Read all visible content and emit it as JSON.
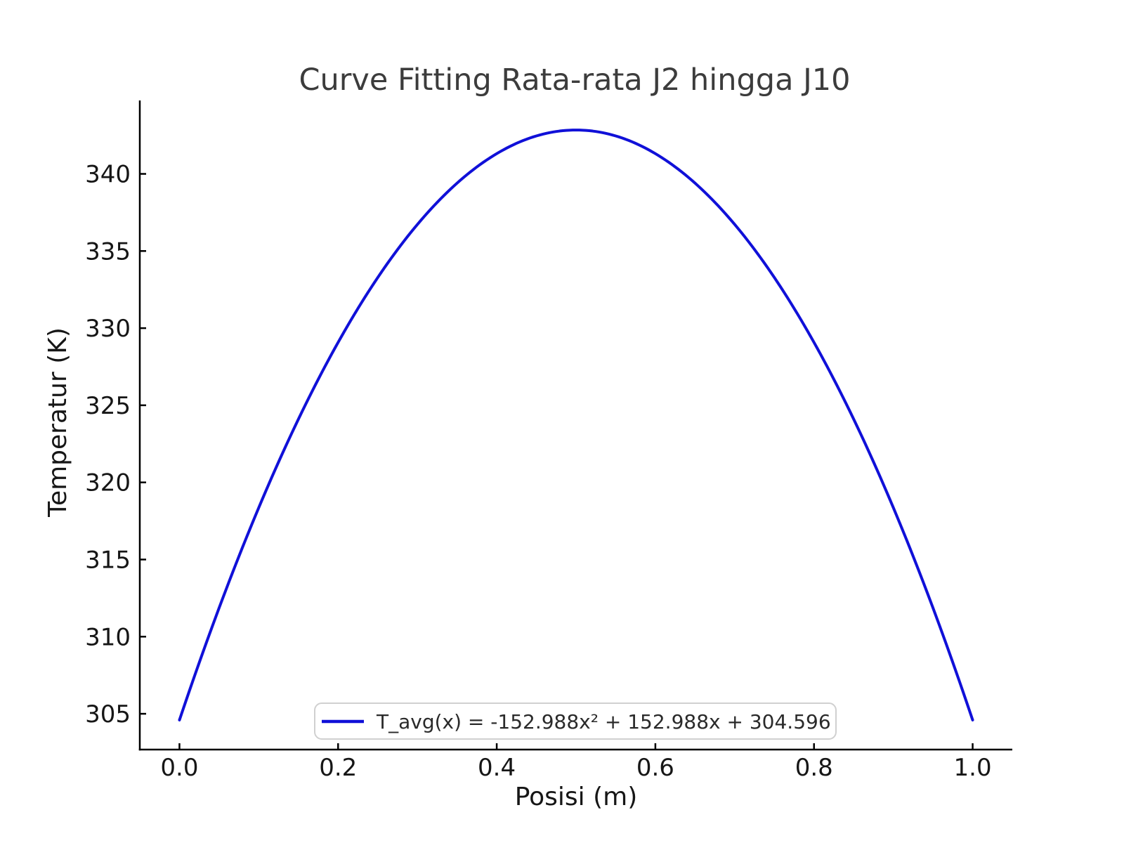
{
  "figure": {
    "background": "#ffffff"
  },
  "colors": {
    "curve": "#1010d8",
    "spine": "#000000",
    "title_text": "#3c3c3c",
    "tick_text": "#161616",
    "legend_border": "#d0d0d0",
    "legend_fill": "#ffffff"
  },
  "chart_data": {
    "type": "line",
    "title": "Curve Fitting Rata-rata J2 hingga J10",
    "xlabel": "Posisi (m)",
    "ylabel": "Temperatur (K)",
    "xlim": [
      -0.05,
      1.05
    ],
    "ylim": [
      302.68,
      344.76
    ],
    "grid": false,
    "x_ticks": {
      "values": [
        0.0,
        0.2,
        0.4,
        0.6,
        0.8,
        1.0
      ],
      "labels": [
        "0.0",
        "0.2",
        "0.4",
        "0.6",
        "0.8",
        "1.0"
      ]
    },
    "y_ticks": {
      "values": [
        305,
        310,
        315,
        320,
        325,
        330,
        335,
        340
      ],
      "labels": [
        "305",
        "310",
        "315",
        "320",
        "325",
        "330",
        "335",
        "340"
      ]
    },
    "legend": {
      "position": "lower center",
      "entries": [
        {
          "label": "T_avg(x) = -152.988x² + 152.988x + 304.596",
          "color": "#1010d8"
        }
      ]
    },
    "series": [
      {
        "name": "T_avg(x) = -152.988x² + 152.988x + 304.596",
        "color": "#1010d8",
        "line_width": 4,
        "fit": {
          "type": "quadratic",
          "a": -152.988,
          "b": 152.988,
          "c": 304.596,
          "x_range": [
            0,
            1
          ]
        },
        "x": [
          0.0,
          0.05,
          0.1,
          0.15,
          0.2,
          0.25,
          0.3,
          0.35,
          0.4,
          0.45,
          0.5,
          0.55,
          0.6,
          0.65,
          0.7,
          0.75,
          0.8,
          0.85,
          0.9,
          0.95,
          1.0
        ],
        "y": [
          304.596,
          311.863,
          318.365,
          324.102,
          329.074,
          333.281,
          336.723,
          339.401,
          341.313,
          342.461,
          342.843,
          342.461,
          341.313,
          339.401,
          336.723,
          333.281,
          329.074,
          324.102,
          318.365,
          311.863,
          304.596
        ]
      }
    ]
  }
}
